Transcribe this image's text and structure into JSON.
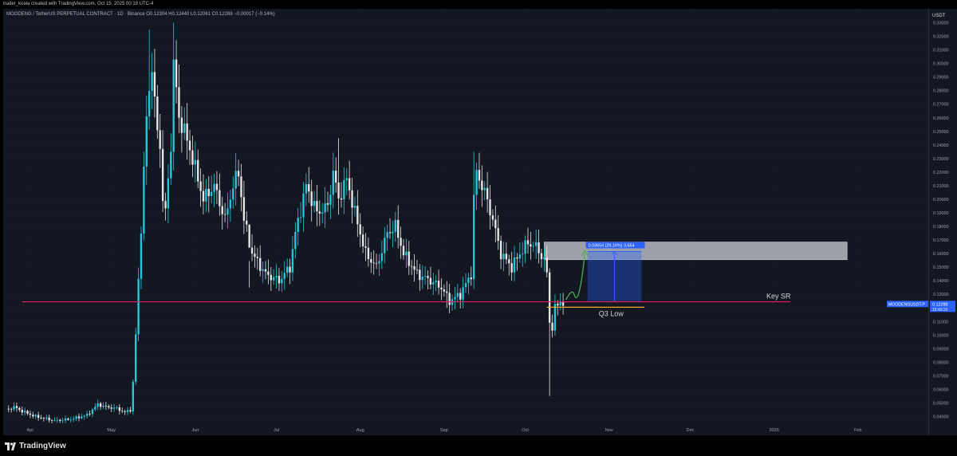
{
  "header": {
    "creator_text": "trader_koala created with TradingView.com, Oct 15, 2025 00:19 UTC-4",
    "symbol_info": "MOODENG / TetherUS PERPETUAL CONTRACT · 1D · Binance  O0.12304 H0.12440 L0.12061 C0.12288 −0.00017 (−0.14%)"
  },
  "footer": {
    "brand": "TradingView",
    "logo_icon": "tradingview-logo-icon"
  },
  "colors": {
    "up": "#26c6da",
    "down": "#e6e6e6",
    "key_sr": "#e91e63",
    "q3_low": "#f5a623",
    "box": "#2962ff",
    "arrow": "#4caf50",
    "price_tag": "#2962ff"
  },
  "chart_data": {
    "type": "candlestick",
    "currency": "USDT",
    "timeframe": "1D",
    "ylim": [
      0.035,
      0.335
    ],
    "y_ticks": [
      "0.33000",
      "0.32000",
      "0.31000",
      "0.30000",
      "0.29000",
      "0.28000",
      "0.27000",
      "0.26000",
      "0.25000",
      "0.24000",
      "0.23000",
      "0.22000",
      "0.21000",
      "0.20000",
      "0.19000",
      "0.18000",
      "0.17000",
      "0.16000",
      "0.15000",
      "0.14000",
      "0.13000",
      "0.12000",
      "0.11000",
      "0.10000",
      "0.09000",
      "0.08000",
      "0.07000",
      "0.06000",
      "0.05000",
      "0.04000"
    ],
    "x_ticks": [
      {
        "label": "Apr",
        "date": "2025-04-01"
      },
      {
        "label": "May",
        "date": "2025-05-01"
      },
      {
        "label": "Jun",
        "date": "2025-06-01"
      },
      {
        "label": "Jul",
        "date": "2025-07-01"
      },
      {
        "label": "Aug",
        "date": "2025-08-01"
      },
      {
        "label": "Sep",
        "date": "2025-09-01"
      },
      {
        "label": "Oct",
        "date": "2025-10-01"
      },
      {
        "label": "Nov",
        "date": "2025-11-01"
      },
      {
        "label": "Dec",
        "date": "2025-12-01"
      },
      {
        "label": "2026",
        "date": "2026-01-01"
      },
      {
        "label": "Feb",
        "date": "2026-02-01"
      }
    ],
    "price_path": [
      [
        "2025-03-23",
        0.045
      ],
      [
        "2025-03-26",
        0.047
      ],
      [
        "2025-03-30",
        0.043
      ],
      [
        "2025-04-03",
        0.04
      ],
      [
        "2025-04-10",
        0.037
      ],
      [
        "2025-04-16",
        0.038
      ],
      [
        "2025-04-22",
        0.041
      ],
      [
        "2025-04-26",
        0.049
      ],
      [
        "2025-04-29",
        0.047
      ],
      [
        "2025-05-03",
        0.046
      ],
      [
        "2025-05-06",
        0.043
      ],
      [
        "2025-05-08",
        0.045
      ],
      [
        "2025-05-09",
        0.065
      ],
      [
        "2025-05-10",
        0.1
      ],
      [
        "2025-05-11",
        0.14
      ],
      [
        "2025-05-12",
        0.18
      ],
      [
        "2025-05-13",
        0.22
      ],
      [
        "2025-05-14",
        0.26
      ],
      [
        "2025-05-15",
        0.28
      ],
      [
        "2025-05-16",
        0.3
      ],
      [
        "2025-05-17",
        0.27
      ],
      [
        "2025-05-18",
        0.25
      ],
      [
        "2025-05-19",
        0.24
      ],
      [
        "2025-05-20",
        0.2
      ],
      [
        "2025-05-21",
        0.19
      ],
      [
        "2025-05-23",
        0.24
      ],
      [
        "2025-05-24",
        0.3
      ],
      [
        "2025-05-25",
        0.28
      ],
      [
        "2025-05-26",
        0.26
      ],
      [
        "2025-05-28",
        0.25
      ],
      [
        "2025-05-31",
        0.23
      ],
      [
        "2025-06-04",
        0.2
      ],
      [
        "2025-06-08",
        0.21
      ],
      [
        "2025-06-12",
        0.185
      ],
      [
        "2025-06-15",
        0.21
      ],
      [
        "2025-06-17",
        0.22
      ],
      [
        "2025-06-19",
        0.185
      ],
      [
        "2025-06-22",
        0.16
      ],
      [
        "2025-06-27",
        0.145
      ],
      [
        "2025-07-02",
        0.14
      ],
      [
        "2025-07-06",
        0.15
      ],
      [
        "2025-07-08",
        0.175
      ],
      [
        "2025-07-12",
        0.21
      ],
      [
        "2025-07-16",
        0.19
      ],
      [
        "2025-07-20",
        0.195
      ],
      [
        "2025-07-22",
        0.22
      ],
      [
        "2025-07-24",
        0.2
      ],
      [
        "2025-07-27",
        0.215
      ],
      [
        "2025-07-30",
        0.19
      ],
      [
        "2025-08-03",
        0.16
      ],
      [
        "2025-08-07",
        0.15
      ],
      [
        "2025-08-11",
        0.175
      ],
      [
        "2025-08-14",
        0.18
      ],
      [
        "2025-08-17",
        0.16
      ],
      [
        "2025-08-22",
        0.145
      ],
      [
        "2025-08-27",
        0.14
      ],
      [
        "2025-08-31",
        0.135
      ],
      [
        "2025-09-03",
        0.125
      ],
      [
        "2025-09-07",
        0.13
      ],
      [
        "2025-09-11",
        0.145
      ],
      [
        "2025-09-12",
        0.2
      ],
      [
        "2025-09-13",
        0.22
      ],
      [
        "2025-09-16",
        0.205
      ],
      [
        "2025-09-19",
        0.185
      ],
      [
        "2025-09-22",
        0.16
      ],
      [
        "2025-09-26",
        0.15
      ],
      [
        "2025-09-29",
        0.16
      ],
      [
        "2025-10-02",
        0.168
      ],
      [
        "2025-10-05",
        0.165
      ],
      [
        "2025-10-08",
        0.155
      ],
      [
        "2025-10-09",
        0.145
      ],
      [
        "2025-10-10",
        0.11
      ],
      [
        "2025-10-11",
        0.105
      ],
      [
        "2025-10-12",
        0.12
      ],
      [
        "2025-10-14",
        0.125
      ],
      [
        "2025-10-15",
        0.123
      ]
    ],
    "spikes": [
      {
        "date": "2025-05-15",
        "high": 0.325
      },
      {
        "date": "2025-05-24",
        "high": 0.33
      },
      {
        "date": "2025-06-21",
        "high": 0.135
      },
      {
        "date": "2025-07-24",
        "high": 0.245
      },
      {
        "date": "2025-09-12",
        "high": 0.235
      },
      {
        "date": "2025-10-10",
        "low": 0.055
      },
      {
        "date": "2025-09-02",
        "low": 0.12
      }
    ],
    "last_price": 0.12288,
    "last_price_label": "MOODENGUSDT.P",
    "last_price_value": "0.12288",
    "countdown": "18:40:20",
    "annotations": {
      "key_sr": {
        "label": "Key SR",
        "price": 0.1245,
        "from": "2025-03-29",
        "to": "2026-01-07"
      },
      "q3_low": {
        "label": "Q3 Low",
        "price": 0.1205,
        "from": "2025-10-09",
        "to": "2025-11-14"
      },
      "resistance_zone": {
        "from": "2025-10-08",
        "to": "2026-01-28",
        "top": 0.1685,
        "bottom": 0.1555
      },
      "measure": {
        "label": "0.03654 (29.16%) 3,654",
        "from": "2025-10-24",
        "to": "2025-11-13",
        "base": 0.125,
        "top": 0.1615
      },
      "projection_arrow": {
        "from": [
          "2025-10-16",
          0.126
        ],
        "to": [
          "2025-10-23",
          0.162
        ]
      }
    }
  }
}
